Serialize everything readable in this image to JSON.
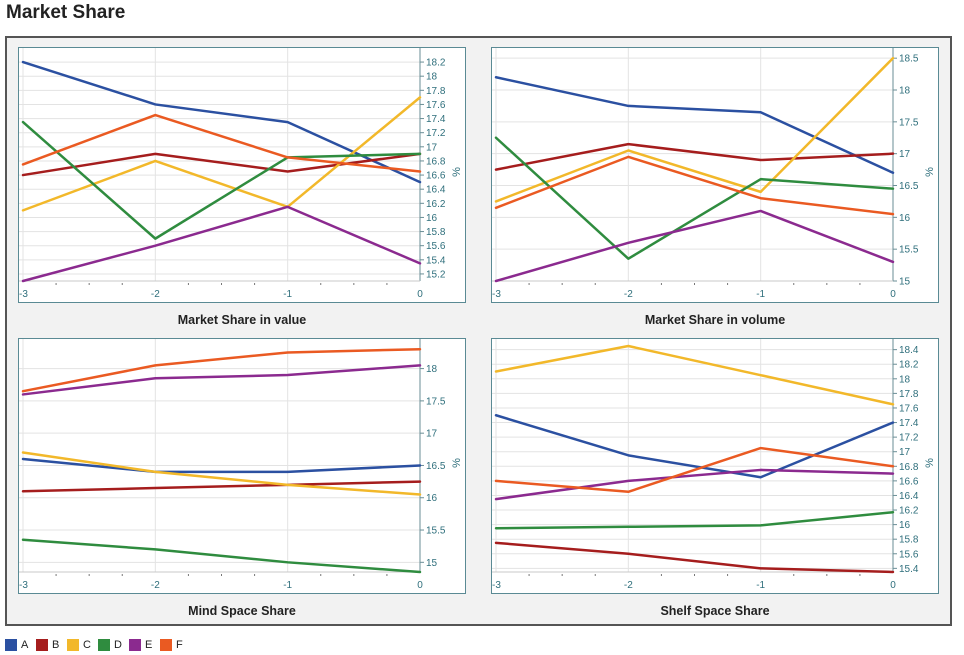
{
  "title": "Market Share",
  "chart_data": [
    {
      "type": "line",
      "title": "Market Share in value",
      "x": [
        -3,
        -2,
        -1,
        0
      ],
      "ylabel": "%",
      "ylim": [
        15.1,
        18.3
      ],
      "yticks": [
        15.2,
        15.4,
        15.6,
        15.8,
        16,
        16.2,
        16.4,
        16.6,
        16.8,
        17,
        17.2,
        17.4,
        17.6,
        17.8,
        18,
        18.2
      ],
      "grid": true,
      "series": [
        {
          "name": "A",
          "values": [
            18.2,
            17.6,
            17.35,
            16.5
          ]
        },
        {
          "name": "B",
          "values": [
            16.6,
            16.9,
            16.65,
            16.9
          ]
        },
        {
          "name": "C",
          "values": [
            16.1,
            16.8,
            16.15,
            17.7
          ]
        },
        {
          "name": "D",
          "values": [
            17.35,
            15.7,
            16.85,
            16.9
          ]
        },
        {
          "name": "E",
          "values": [
            15.1,
            15.6,
            16.15,
            15.35
          ]
        },
        {
          "name": "F",
          "values": [
            16.75,
            17.45,
            16.85,
            16.65
          ]
        }
      ]
    },
    {
      "type": "line",
      "title": "Market Share in volume",
      "x": [
        -3,
        -2,
        -1,
        0
      ],
      "ylabel": "%",
      "ylim": [
        15,
        18.55
      ],
      "yticks": [
        15,
        15.5,
        16,
        16.5,
        17,
        17.5,
        18,
        18.5
      ],
      "grid": true,
      "series": [
        {
          "name": "A",
          "values": [
            18.2,
            17.75,
            17.65,
            16.7
          ]
        },
        {
          "name": "B",
          "values": [
            16.75,
            17.15,
            16.9,
            17.0
          ]
        },
        {
          "name": "C",
          "values": [
            16.25,
            17.05,
            16.4,
            18.5
          ]
        },
        {
          "name": "D",
          "values": [
            17.25,
            15.35,
            16.6,
            16.45
          ]
        },
        {
          "name": "E",
          "values": [
            15.0,
            15.6,
            16.1,
            15.3
          ]
        },
        {
          "name": "F",
          "values": [
            16.15,
            16.95,
            16.3,
            16.05
          ]
        }
      ]
    },
    {
      "type": "line",
      "title": "Mind Space Share",
      "x": [
        -3,
        -2,
        -1,
        0
      ],
      "ylabel": "%",
      "ylim": [
        14.85,
        18.35
      ],
      "yticks": [
        15,
        15.5,
        16,
        16.5,
        17,
        17.5,
        18
      ],
      "grid": true,
      "series": [
        {
          "name": "A",
          "values": [
            16.6,
            16.4,
            16.4,
            16.5
          ]
        },
        {
          "name": "B",
          "values": [
            16.1,
            16.15,
            16.2,
            16.25
          ]
        },
        {
          "name": "C",
          "values": [
            16.7,
            16.4,
            16.2,
            16.05
          ]
        },
        {
          "name": "D",
          "values": [
            15.35,
            15.2,
            15.0,
            14.85
          ]
        },
        {
          "name": "E",
          "values": [
            17.6,
            17.85,
            17.9,
            18.05
          ]
        },
        {
          "name": "F",
          "values": [
            17.65,
            18.05,
            18.25,
            18.3
          ]
        }
      ]
    },
    {
      "type": "line",
      "title": "Shelf Space Share",
      "x": [
        -3,
        -2,
        -1,
        0
      ],
      "ylabel": "%",
      "ylim": [
        15.35,
        18.45
      ],
      "yticks": [
        15.4,
        15.6,
        15.8,
        16,
        16.2,
        16.4,
        16.6,
        16.8,
        17,
        17.2,
        17.4,
        17.6,
        17.8,
        18,
        18.2,
        18.4
      ],
      "grid": true,
      "series": [
        {
          "name": "A",
          "values": [
            17.5,
            16.95,
            16.65,
            17.4
          ]
        },
        {
          "name": "B",
          "values": [
            15.75,
            15.6,
            15.4,
            15.35
          ]
        },
        {
          "name": "C",
          "values": [
            18.1,
            18.45,
            18.05,
            17.65
          ]
        },
        {
          "name": "D",
          "values": [
            15.95,
            15.97,
            15.99,
            16.17
          ]
        },
        {
          "name": "E",
          "values": [
            16.35,
            16.6,
            16.75,
            16.7
          ]
        },
        {
          "name": "F",
          "values": [
            16.6,
            16.45,
            17.05,
            16.8
          ]
        }
      ]
    }
  ],
  "legend": [
    {
      "label": "A",
      "color": "#2b50a1"
    },
    {
      "label": "B",
      "color": "#a51d1d"
    },
    {
      "label": "C",
      "color": "#f2b82a"
    },
    {
      "label": "D",
      "color": "#2f8c3f"
    },
    {
      "label": "E",
      "color": "#8b2a8f"
    },
    {
      "label": "F",
      "color": "#ea5a22"
    }
  ]
}
